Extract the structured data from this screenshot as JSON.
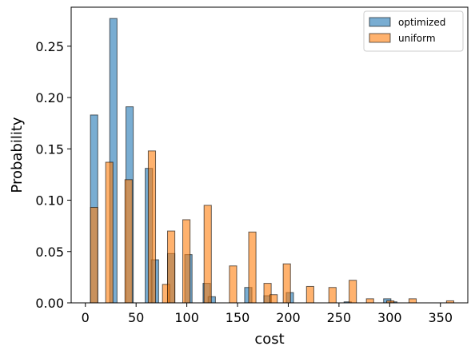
{
  "chart_data": {
    "type": "histogram",
    "xlabel": "cost",
    "ylabel": "Probability",
    "xlim": [
      -14,
      377
    ],
    "ylim": [
      0,
      0.288
    ],
    "xticks": [
      0,
      50,
      100,
      150,
      200,
      250,
      300,
      350
    ],
    "yticks": [
      0.0,
      0.05,
      0.1,
      0.15,
      0.2,
      0.25
    ],
    "ytick_labels": [
      "0.00",
      "0.05",
      "0.10",
      "0.15",
      "0.20",
      "0.25"
    ],
    "bin_width": 7.2,
    "legend": {
      "placement": "top-right"
    },
    "series": [
      {
        "name": "optimized",
        "color": "#1f77b4",
        "bars": [
          {
            "x": 5,
            "y": 0.183
          },
          {
            "x": 24,
            "y": 0.277
          },
          {
            "x": 40,
            "y": 0.191
          },
          {
            "x": 59,
            "y": 0.131
          },
          {
            "x": 65,
            "y": 0.042
          },
          {
            "x": 81,
            "y": 0.048
          },
          {
            "x": 98,
            "y": 0.047
          },
          {
            "x": 116,
            "y": 0.019
          },
          {
            "x": 121,
            "y": 0.006
          },
          {
            "x": 157,
            "y": 0.015
          },
          {
            "x": 176,
            "y": 0.007
          },
          {
            "x": 198,
            "y": 0.01
          },
          {
            "x": 255,
            "y": 0.001
          },
          {
            "x": 294,
            "y": 0.004
          },
          {
            "x": 300,
            "y": 0.001
          }
        ]
      },
      {
        "name": "uniform",
        "color": "#ff7f0e",
        "bars": [
          {
            "x": 5,
            "y": 0.093
          },
          {
            "x": 20,
            "y": 0.137
          },
          {
            "x": 39,
            "y": 0.12
          },
          {
            "x": 62,
            "y": 0.148
          },
          {
            "x": 76,
            "y": 0.018
          },
          {
            "x": 81,
            "y": 0.07
          },
          {
            "x": 96,
            "y": 0.081
          },
          {
            "x": 117,
            "y": 0.095
          },
          {
            "x": 142,
            "y": 0.036
          },
          {
            "x": 161,
            "y": 0.069
          },
          {
            "x": 176,
            "y": 0.019
          },
          {
            "x": 182,
            "y": 0.008
          },
          {
            "x": 195,
            "y": 0.038
          },
          {
            "x": 218,
            "y": 0.016
          },
          {
            "x": 240,
            "y": 0.015
          },
          {
            "x": 260,
            "y": 0.022
          },
          {
            "x": 277,
            "y": 0.004
          },
          {
            "x": 297,
            "y": 0.002
          },
          {
            "x": 319,
            "y": 0.004
          },
          {
            "x": 356,
            "y": 0.002
          }
        ]
      }
    ]
  }
}
